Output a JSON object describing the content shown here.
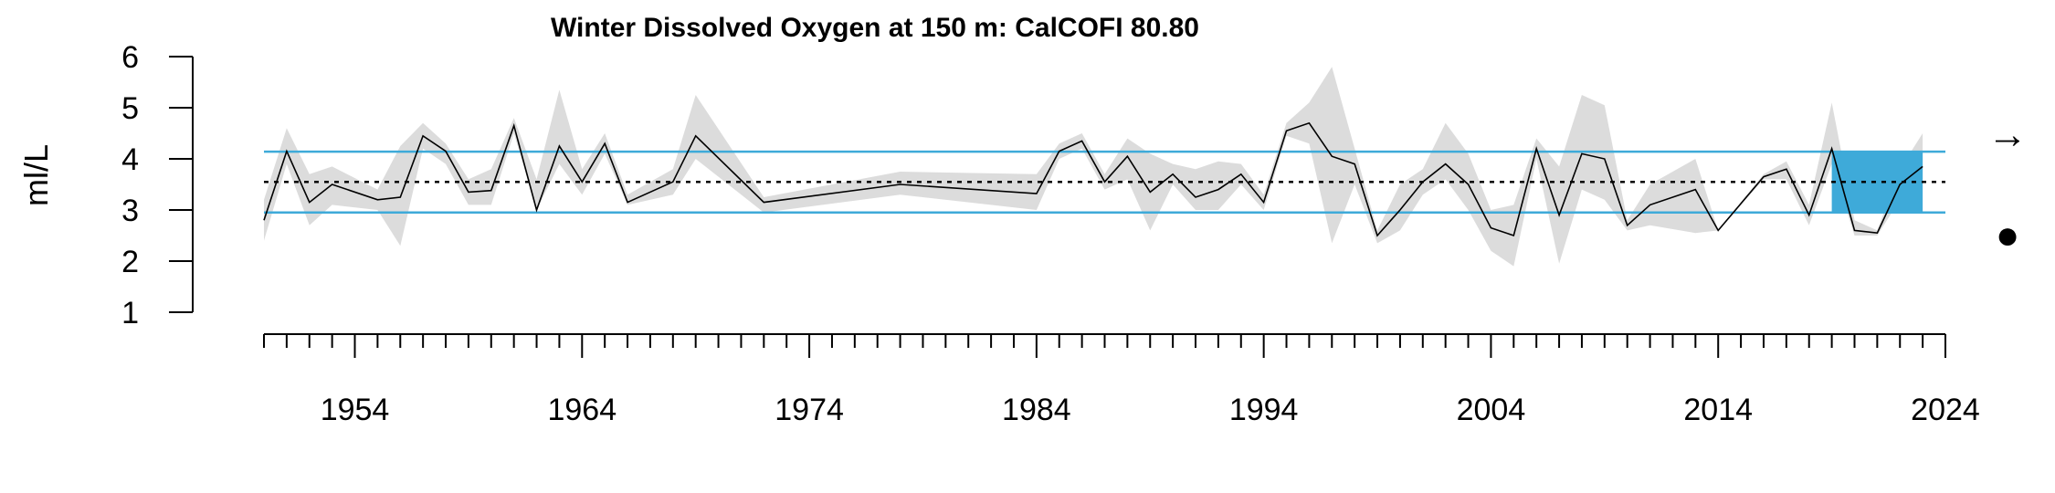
{
  "chart_data": {
    "type": "line",
    "title": "Winter Dissolved Oxygen at 150 m: CalCOFI 80.80",
    "xlabel": "",
    "ylabel": "ml/L",
    "xlim": [
      1950,
      2024
    ],
    "ylim": [
      1,
      6
    ],
    "y_ticks": [
      1,
      2,
      3,
      4,
      5,
      6
    ],
    "x_tick_labels": [
      1954,
      1964,
      1974,
      1984,
      1994,
      2004,
      2014,
      2024
    ],
    "mean": 3.55,
    "sd_upper": 4.14,
    "sd_lower": 2.95,
    "recent_period": [
      2019,
      2023
    ],
    "trend_symbol": "→",
    "recent_mean_symbol": "●",
    "colors": {
      "line": "#000000",
      "band": "#dcdcdc",
      "sd": "#3eaad9",
      "recent": "#3eaad9"
    },
    "series": [
      {
        "x": [
          1950,
          1951,
          1952,
          1953,
          1955,
          1956,
          1957,
          1958,
          1959,
          1960,
          1961,
          1962,
          1963,
          1964,
          1965,
          1966,
          1968,
          1969,
          1972,
          1978,
          1984,
          1985,
          1986,
          1987,
          1988,
          1989,
          1990,
          1991,
          1992,
          1993,
          1994,
          1995,
          1996,
          1997,
          1998,
          1999,
          2000,
          2001,
          2002,
          2003,
          2004,
          2005,
          2006,
          2007,
          2008,
          2009,
          2010,
          2011,
          2013,
          2014,
          2016,
          2017,
          2018,
          2019,
          2020,
          2021,
          2022,
          2023
        ],
        "y": [
          2.8,
          4.15,
          3.15,
          3.5,
          3.2,
          3.25,
          4.45,
          4.15,
          3.35,
          3.38,
          4.65,
          3.0,
          4.25,
          3.55,
          4.3,
          3.15,
          3.55,
          4.45,
          3.15,
          3.5,
          3.32,
          4.15,
          4.35,
          3.55,
          4.05,
          3.35,
          3.7,
          3.25,
          3.4,
          3.7,
          3.15,
          4.55,
          4.7,
          4.05,
          3.9,
          2.5,
          3.0,
          3.55,
          3.9,
          3.5,
          2.65,
          2.5,
          4.2,
          2.9,
          4.1,
          4.0,
          2.7,
          3.1,
          3.4,
          2.6,
          3.65,
          3.8,
          2.9,
          4.2,
          2.6,
          2.55,
          3.5,
          3.85
        ],
        "lo": [
          2.4,
          3.9,
          2.7,
          3.1,
          3.0,
          2.3,
          4.2,
          3.9,
          3.1,
          3.1,
          4.5,
          3.0,
          3.9,
          3.3,
          4.1,
          3.1,
          3.3,
          4.0,
          2.95,
          3.3,
          3.0,
          4.0,
          4.2,
          3.4,
          3.6,
          2.6,
          3.5,
          3.0,
          3.0,
          3.5,
          3.0,
          4.45,
          4.3,
          2.35,
          3.5,
          2.35,
          2.6,
          3.3,
          3.6,
          3.0,
          2.2,
          1.9,
          4.0,
          1.95,
          3.4,
          3.2,
          2.6,
          2.7,
          2.55,
          2.6,
          3.6,
          3.6,
          2.7,
          3.9,
          2.5,
          2.5,
          3.2,
          3.4
        ],
        "hi": [
          3.2,
          4.6,
          3.7,
          3.85,
          3.4,
          4.25,
          4.7,
          4.3,
          3.6,
          3.8,
          4.8,
          3.6,
          5.35,
          3.8,
          4.5,
          3.3,
          3.8,
          5.25,
          3.25,
          3.75,
          3.7,
          4.3,
          4.5,
          3.7,
          4.4,
          4.1,
          3.9,
          3.8,
          3.95,
          3.9,
          3.3,
          4.7,
          5.1,
          5.8,
          4.2,
          2.6,
          3.5,
          3.8,
          4.7,
          4.1,
          3.0,
          3.1,
          4.4,
          3.85,
          5.25,
          5.05,
          2.8,
          3.5,
          4.0,
          2.6,
          3.7,
          3.95,
          3.1,
          5.1,
          2.8,
          2.6,
          3.8,
          4.5
        ]
      }
    ]
  }
}
